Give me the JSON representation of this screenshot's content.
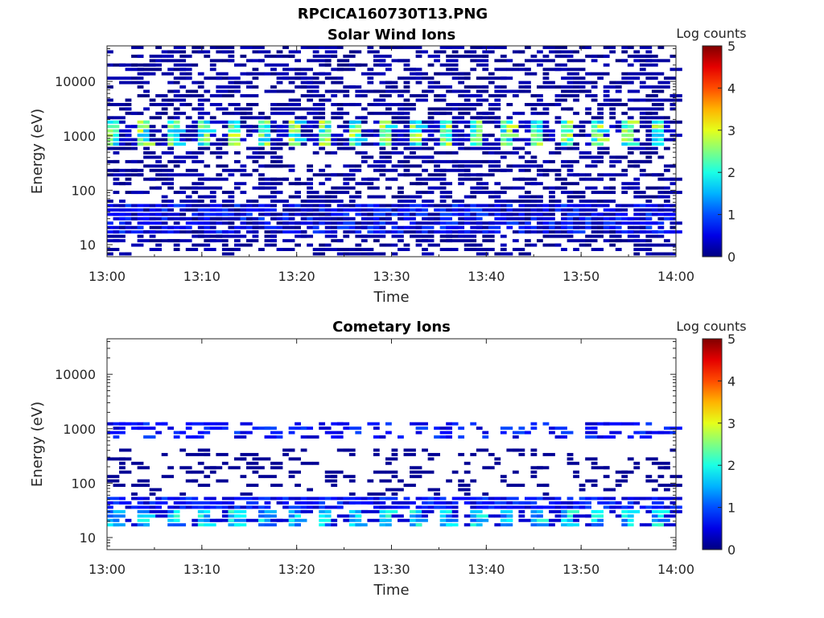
{
  "figure": {
    "title": "RPCICA160730T13.PNG"
  },
  "chart_data": [
    {
      "type": "heatmap",
      "title": "Solar Wind Ions",
      "xlabel": "Time",
      "ylabel": "Energy (eV)",
      "x_tick_labels": [
        "13:00",
        "13:10",
        "13:20",
        "13:30",
        "13:40",
        "13:50",
        "14:00"
      ],
      "x_range": [
        "13:00",
        "14:00"
      ],
      "y_scale": "log",
      "y_range": [
        6,
        45000
      ],
      "y_tick_labels": [
        "10",
        "100",
        "1000",
        "10000"
      ],
      "y_tick_values": [
        10,
        100,
        1000,
        10000
      ],
      "colorbar": {
        "title": "Log counts",
        "range": [
          0,
          5
        ],
        "tick_labels": [
          "0",
          "1",
          "2",
          "3",
          "4",
          "5"
        ],
        "colormap": "jet"
      },
      "features": [
        {
          "description": "ion beam",
          "energy_eV": [
            600,
            2000
          ],
          "log_counts": [
            1.5,
            3
          ],
          "period_minutes": 3.2
        },
        {
          "description": "low energy band",
          "energy_eV": [
            15,
            60
          ],
          "log_counts": [
            0,
            1
          ]
        },
        {
          "description": "background noise",
          "energy_eV": [
            6,
            45000
          ],
          "log_counts": [
            0,
            0.3
          ]
        }
      ]
    },
    {
      "type": "heatmap",
      "title": "Cometary Ions",
      "xlabel": "Time",
      "ylabel": "Energy (eV)",
      "x_tick_labels": [
        "13:00",
        "13:10",
        "13:20",
        "13:30",
        "13:40",
        "13:50",
        "14:00"
      ],
      "x_range": [
        "13:00",
        "14:00"
      ],
      "y_scale": "log",
      "y_range": [
        6,
        45000
      ],
      "y_tick_labels": [
        "10",
        "100",
        "1000",
        "10000"
      ],
      "y_tick_values": [
        10,
        100,
        1000,
        10000
      ],
      "colorbar": {
        "title": "Log counts",
        "range": [
          0,
          5
        ],
        "tick_labels": [
          "0",
          "1",
          "2",
          "3",
          "4",
          "5"
        ],
        "colormap": "jet"
      },
      "features": [
        {
          "description": "ion band",
          "energy_eV": [
            15,
            35
          ],
          "log_counts": [
            1,
            2.2
          ],
          "period_minutes": 3.2
        },
        {
          "description": "ion band",
          "energy_eV": [
            35,
            60
          ],
          "log_counts": [
            0.3,
            1
          ]
        },
        {
          "description": "faint beam",
          "energy_eV": [
            600,
            1200
          ],
          "log_counts": [
            0.3,
            1
          ]
        }
      ]
    }
  ]
}
